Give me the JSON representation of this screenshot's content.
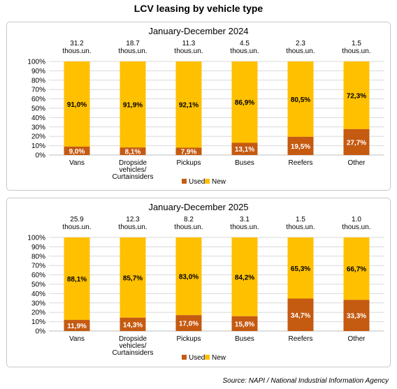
{
  "title": "LCV leasing by vehicle type",
  "source": "Source: NAPI / National Industrial Information Agency",
  "colors": {
    "used": "#C55A11",
    "new": "#FFC000",
    "grid": "#D9D9D9",
    "axis": "#BFBFBF"
  },
  "chart_data": [
    {
      "type": "bar",
      "stacked": true,
      "title": "January-December 2024",
      "categories": [
        "Vans",
        "Dropside vehicles/ Curtainsiders",
        "Pickups",
        "Buses",
        "Reefers",
        "Other"
      ],
      "totals": [
        "31.2 thous.un.",
        "18.7 thous.un.",
        "11.3 thous.un.",
        "4.5 thous.un.",
        "2.3 thous.un.",
        "1.5 thous.un."
      ],
      "ylim": [
        0,
        100
      ],
      "yticks": [
        "0%",
        "10%",
        "20%",
        "30%",
        "40%",
        "50%",
        "60%",
        "70%",
        "80%",
        "90%",
        "100%"
      ],
      "legend": "bottom",
      "series": [
        {
          "name": "Used",
          "values": [
            9.0,
            8.1,
            7.9,
            13.1,
            19.5,
            27.7
          ],
          "labels": [
            "9,0%",
            "8,1%",
            "7,9%",
            "13,1%",
            "19,5%",
            "27,7%"
          ]
        },
        {
          "name": "New",
          "values": [
            91.0,
            91.9,
            92.1,
            86.9,
            80.5,
            72.3
          ],
          "labels": [
            "91,0%",
            "91,9%",
            "92,1%",
            "86,9%",
            "80,5%",
            "72,3%"
          ]
        }
      ]
    },
    {
      "type": "bar",
      "stacked": true,
      "title": "January-December 2025",
      "categories": [
        "Vans",
        "Dropside vehicles/ Curtainsiders",
        "Pickups",
        "Buses",
        "Reefers",
        "Other"
      ],
      "totals": [
        "25.9 thous.un.",
        "12.3 thous.un.",
        "8.2 thous.un.",
        "3.1 thous.un.",
        "1.5 thous.un.",
        "1.0 thous.un."
      ],
      "ylim": [
        0,
        100
      ],
      "yticks": [
        "0%",
        "10%",
        "20%",
        "30%",
        "40%",
        "50%",
        "60%",
        "70%",
        "80%",
        "90%",
        "100%"
      ],
      "legend": "bottom",
      "series": [
        {
          "name": "Used",
          "values": [
            11.9,
            14.3,
            17.0,
            15.8,
            34.7,
            33.3
          ],
          "labels": [
            "11,9%",
            "14,3%",
            "17,0%",
            "15,8%",
            "34,7%",
            "33,3%"
          ]
        },
        {
          "name": "New",
          "values": [
            88.1,
            85.7,
            83.0,
            84.2,
            65.3,
            66.7
          ],
          "labels": [
            "88,1%",
            "85,7%",
            "83,0%",
            "84,2%",
            "65,3%",
            "66,7%"
          ]
        }
      ]
    }
  ]
}
